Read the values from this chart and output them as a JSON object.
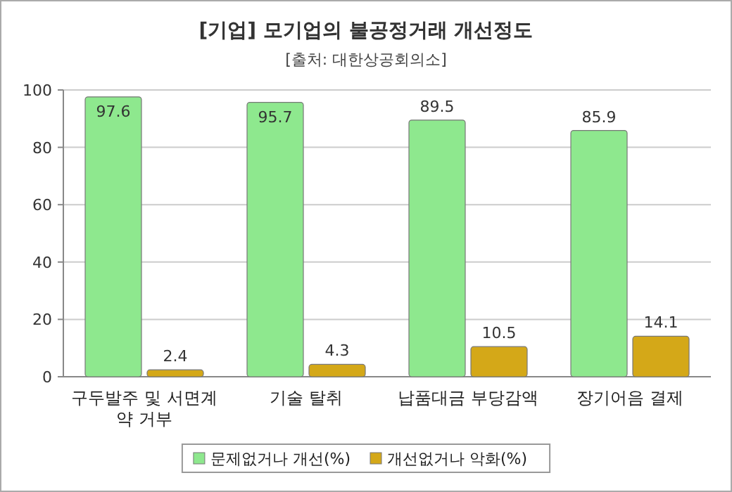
{
  "chart_data": {
    "type": "bar",
    "title": "[기업] 모기업의 불공정거래 개선정도",
    "subtitle": "[출처: 대한상공회의소]",
    "categories": [
      "구두발주 및 서면계약 거부",
      "기술 탈취",
      "납품대금 부당감액",
      "장기어음 결제"
    ],
    "series": [
      {
        "name": "문제없거나 개선(%)",
        "color": "#8ee88e",
        "values": [
          97.6,
          95.7,
          89.5,
          85.9
        ]
      },
      {
        "name": "개선없거나 악화(%)",
        "color": "#d4a818",
        "values": [
          2.4,
          4.3,
          10.5,
          14.1
        ]
      }
    ],
    "ylim": [
      0,
      100
    ],
    "yticks": [
      0,
      20,
      40,
      60,
      80,
      100
    ],
    "grid": "y",
    "legend": "bottom",
    "data_labels": true
  }
}
